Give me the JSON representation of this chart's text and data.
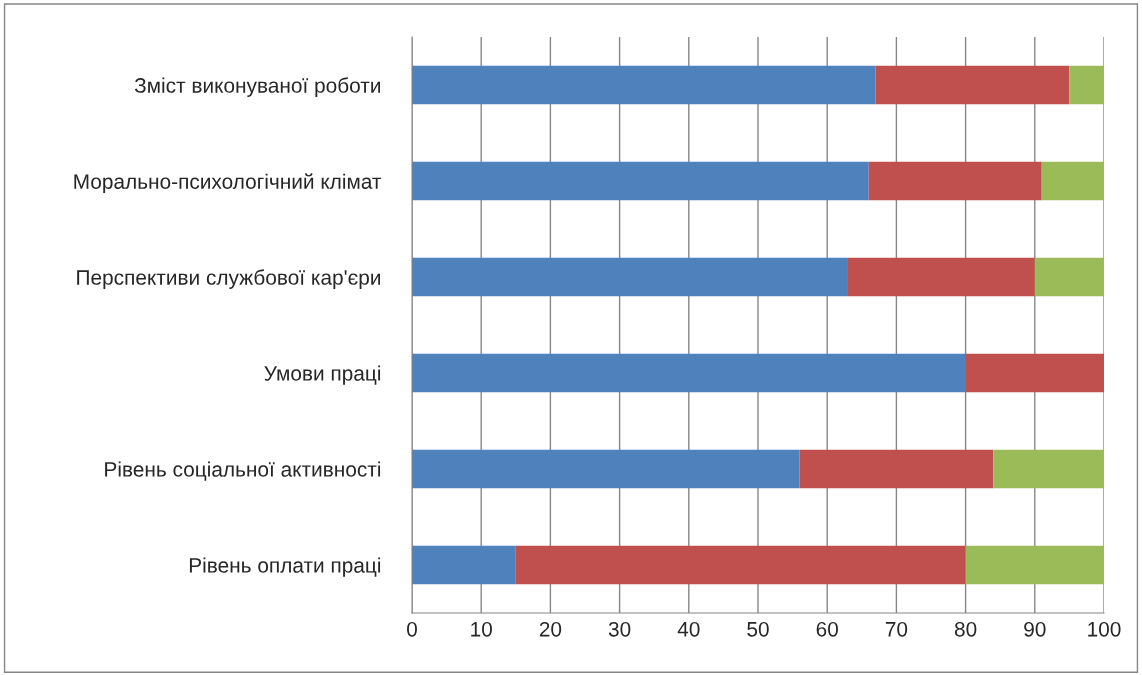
{
  "chart_data": {
    "type": "bar",
    "orientation": "horizontal",
    "stacked": true,
    "categories": [
      "Зміст виконуваної роботи",
      "Морально-психологічний клімат",
      "Перспективи службової кар'єри",
      "Умови праці",
      "Рівень соціальної активності",
      "Рівень оплати праці"
    ],
    "series": [
      {
        "color": "#4f81bd",
        "values": [
          67,
          66,
          63,
          80,
          56,
          15
        ]
      },
      {
        "color": "#c0504d",
        "values": [
          28,
          25,
          27,
          20,
          28,
          65
        ]
      },
      {
        "color": "#9bbb59",
        "values": [
          5,
          9,
          10,
          0,
          16,
          20
        ]
      }
    ],
    "xlim": [
      0,
      100
    ],
    "xticks": [
      0,
      10,
      20,
      30,
      40,
      50,
      60,
      70,
      80,
      90,
      100
    ],
    "grid": "x"
  }
}
